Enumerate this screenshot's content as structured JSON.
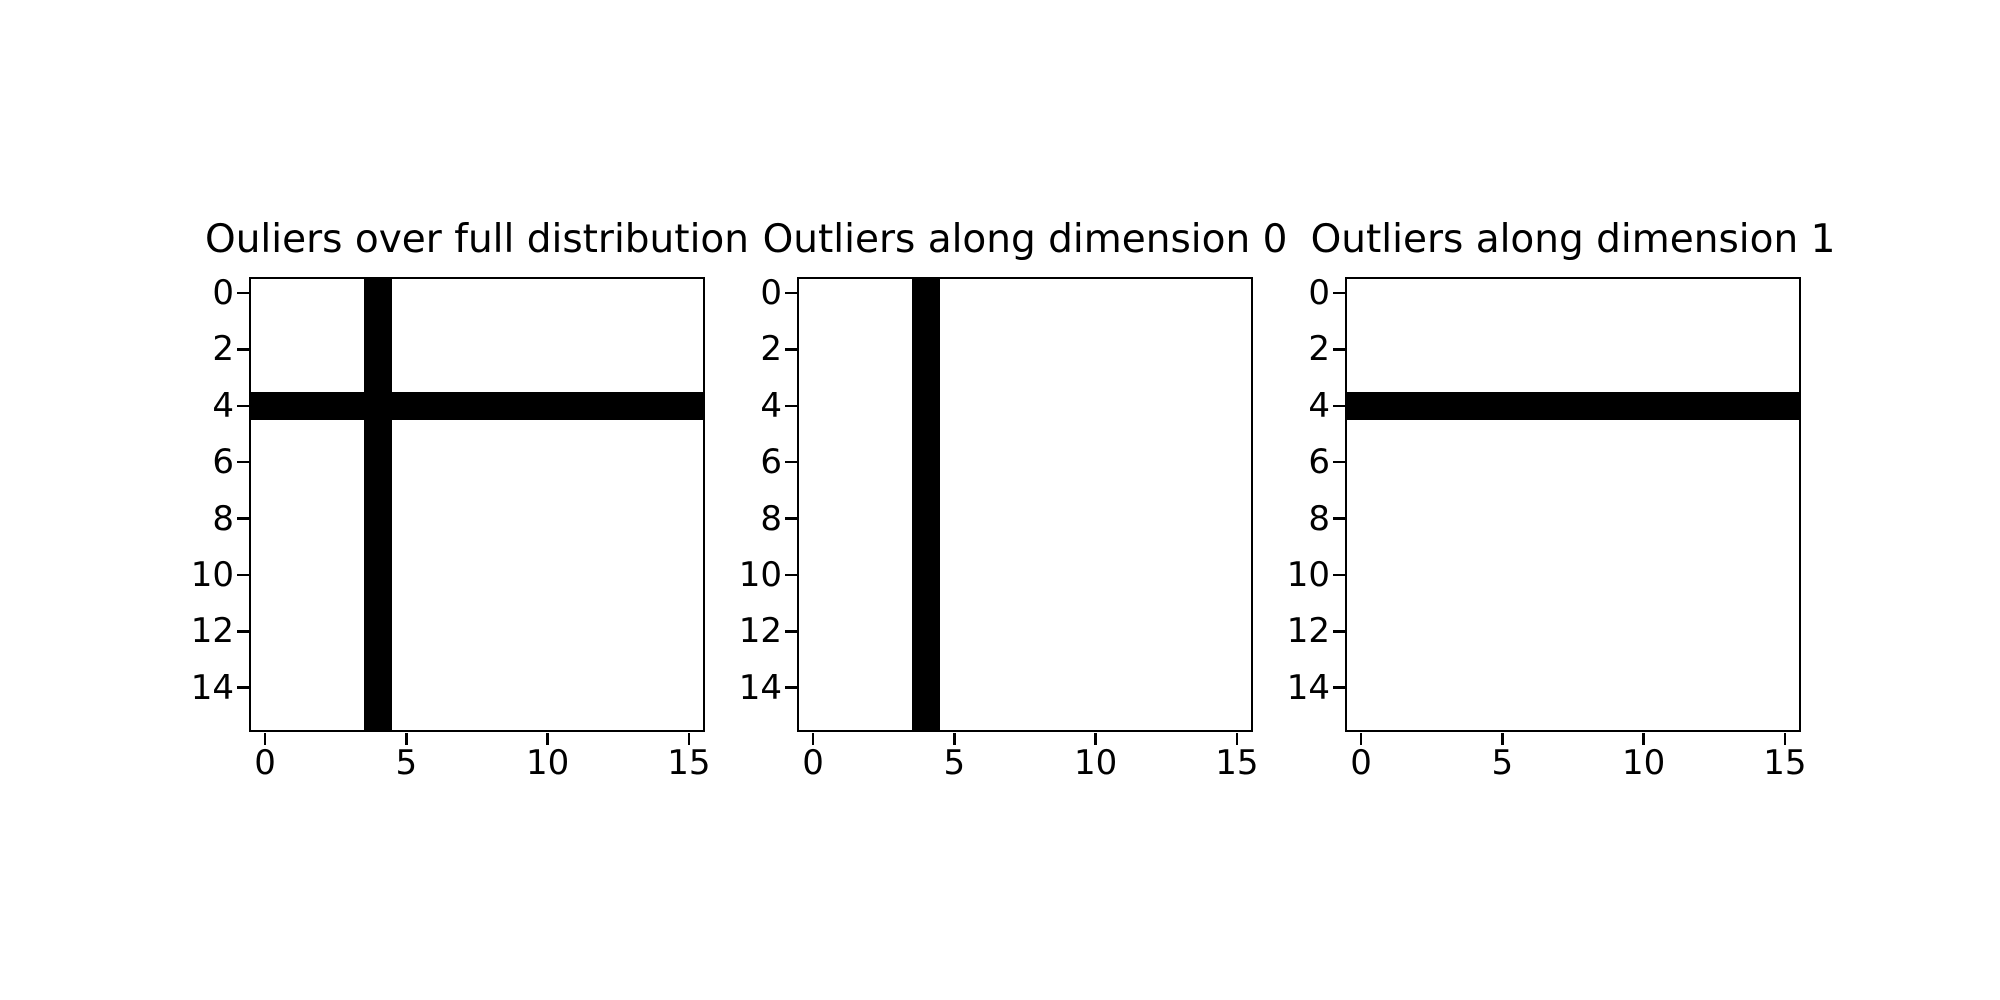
{
  "figure": {
    "background_color": "#ffffff",
    "foreground_color": "#000000",
    "outlier_color": "#000000",
    "cell_background_color": "#ffffff"
  },
  "chart_data": [
    {
      "type": "heatmap",
      "title": "Ouliers over full distribution",
      "xlabel": "",
      "ylabel": "",
      "grid_size": [
        16,
        16
      ],
      "x_range": [
        -0.5,
        15.5
      ],
      "y_range": [
        15.5,
        -0.5
      ],
      "x_ticks": [
        0,
        5,
        10,
        15
      ],
      "y_ticks": [
        0,
        2,
        4,
        6,
        8,
        10,
        12,
        14
      ],
      "black_columns": [
        4
      ],
      "black_rows": [
        4
      ],
      "legend": "none",
      "grid_lines": false
    },
    {
      "type": "heatmap",
      "title": "Outliers along dimension 0",
      "xlabel": "",
      "ylabel": "",
      "grid_size": [
        16,
        16
      ],
      "x_range": [
        -0.5,
        15.5
      ],
      "y_range": [
        15.5,
        -0.5
      ],
      "x_ticks": [
        0,
        5,
        10,
        15
      ],
      "y_ticks": [
        0,
        2,
        4,
        6,
        8,
        10,
        12,
        14
      ],
      "black_columns": [
        4
      ],
      "black_rows": [],
      "legend": "none",
      "grid_lines": false
    },
    {
      "type": "heatmap",
      "title": "Outliers along dimension 1",
      "xlabel": "",
      "ylabel": "",
      "grid_size": [
        16,
        16
      ],
      "x_range": [
        -0.5,
        15.5
      ],
      "y_range": [
        15.5,
        -0.5
      ],
      "x_ticks": [
        0,
        5,
        10,
        15
      ],
      "y_ticks": [
        0,
        2,
        4,
        6,
        8,
        10,
        12,
        14
      ],
      "black_columns": [],
      "black_rows": [
        4
      ],
      "legend": "none",
      "grid_lines": false
    }
  ]
}
